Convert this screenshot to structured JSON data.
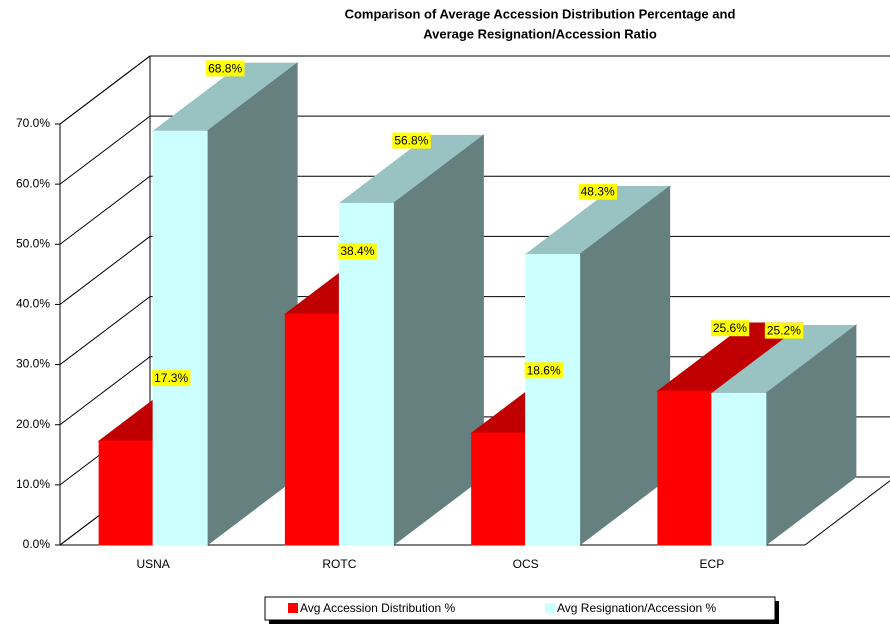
{
  "chart_data": {
    "type": "bar3d",
    "title": [
      "Comparison of Average Accession Distribution Percentage and",
      "Average Resignation/Accession Ratio"
    ],
    "categories": [
      "USNA",
      "ROTC",
      "OCS",
      "ECP"
    ],
    "series": [
      {
        "name": "Avg Accession Distribution %",
        "color": "#ff0000",
        "top_color": "#c00000",
        "values": [
          17.3,
          38.4,
          18.6,
          25.6
        ],
        "value_labels": [
          "17.3%",
          "38.4%",
          "18.6%",
          "25.6%"
        ]
      },
      {
        "name": "Avg Resignation/Accession %",
        "color": "#ccffff",
        "top_color": "#99c2c2",
        "side_color": "#668080",
        "values": [
          68.8,
          56.8,
          48.3,
          25.2
        ],
        "value_labels": [
          "68.8%",
          "56.8%",
          "48.3%",
          "25.2%"
        ]
      }
    ],
    "ylim": [
      0,
      70
    ],
    "yticks": [
      {
        "value": 0,
        "label": "0.0%"
      },
      {
        "value": 10,
        "label": "10.0%"
      },
      {
        "value": 20,
        "label": "20.0%"
      },
      {
        "value": 30,
        "label": "30.0%"
      },
      {
        "value": 40,
        "label": "40.0%"
      },
      {
        "value": 50,
        "label": "50.0%"
      },
      {
        "value": 60,
        "label": "60.0%"
      },
      {
        "value": 70,
        "label": "70.0%"
      }
    ],
    "grid": true,
    "legend": "bottom",
    "label_background": "#ffff00"
  }
}
